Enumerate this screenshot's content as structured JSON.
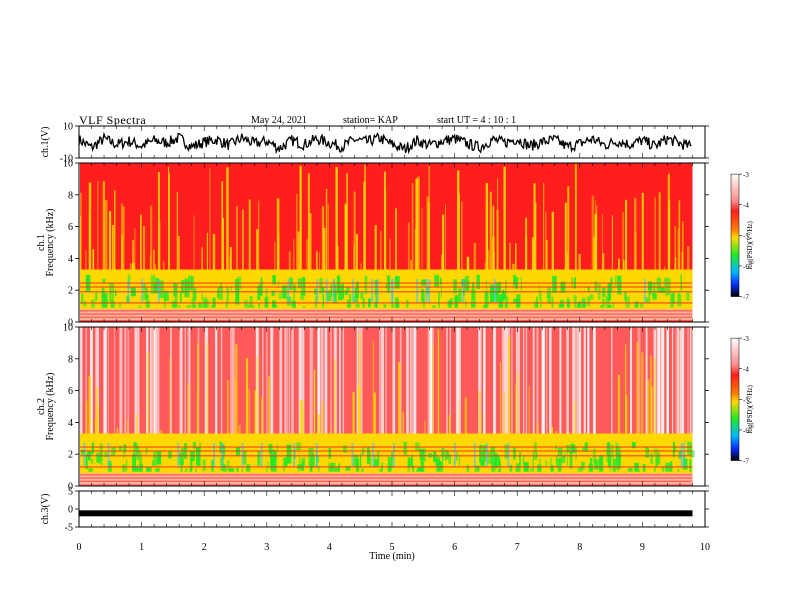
{
  "header": {
    "title": "VLF Spectra",
    "date": "May 24, 2021",
    "station": "station= KAP",
    "start": "start  UT =   4 : 10 : 1"
  },
  "chart_data": [
    {
      "id": "ch1-waveform",
      "type": "line",
      "ylabel": "ch.1(V)",
      "ylim": [
        -10,
        10
      ],
      "yticks": [
        "10",
        "-10"
      ],
      "xlim": [
        0,
        10
      ],
      "series": [
        {
          "color": "#000000",
          "x": [
            0.0,
            0.2,
            0.4,
            0.6,
            0.8,
            1.0,
            1.2,
            1.4,
            1.6,
            1.8,
            2.0,
            2.2,
            2.4,
            2.6,
            2.8,
            3.0,
            3.2,
            3.4,
            3.6,
            3.8,
            4.0,
            4.2,
            4.4,
            4.6,
            4.8,
            5.0,
            5.2,
            5.4,
            5.6,
            5.8,
            6.0,
            6.2,
            6.4,
            6.6,
            6.8,
            7.0,
            7.2,
            7.4,
            7.6,
            7.8,
            8.0,
            8.2,
            8.4,
            8.6,
            8.8,
            9.0,
            9.2,
            9.4,
            9.6,
            9.8
          ],
          "values": [
            1.5,
            -3.5,
            2.0,
            -1.5,
            0.5,
            -2.5,
            1.0,
            -0.5,
            2.5,
            -3.0,
            0.0,
            1.5,
            -2.0,
            2.5,
            -1.0,
            0.5,
            -4.0,
            1.0,
            -1.5,
            2.0,
            -0.5,
            -3.0,
            1.5,
            0.0,
            2.5,
            -1.5,
            -4.5,
            1.0,
            -2.0,
            0.5,
            2.0,
            -1.0,
            -3.5,
            1.5,
            -0.5,
            2.0,
            -2.5,
            0.0,
            1.5,
            -3.0,
            -1.0,
            2.0,
            -2.0,
            0.5,
            -1.5,
            1.0,
            -2.5,
            2.0,
            -1.0,
            -3.0
          ]
        }
      ]
    },
    {
      "id": "ch1-spectrogram",
      "type": "heatmap",
      "ylabel": "ch.1\nFrequency  (kHz)",
      "ylim": [
        0,
        10
      ],
      "yticks": [
        "0",
        "2",
        "4",
        "6",
        "8",
        "10"
      ],
      "xlim": [
        0,
        10
      ],
      "colorbar": {
        "label": "log(PSD)(V²/Hz)",
        "range": [
          -7,
          -3
        ],
        "ticks": [
          "-3",
          "-4",
          "-5",
          "-6",
          "-7"
        ]
      }
    },
    {
      "id": "ch2-spectrogram",
      "type": "heatmap",
      "ylabel": "ch.2\nFrequency  (kHz)",
      "ylim": [
        0,
        10
      ],
      "yticks": [
        "0",
        "2",
        "4",
        "6",
        "8",
        "10"
      ],
      "xlim": [
        0,
        10
      ],
      "colorbar": {
        "label": "log(PSD)(V²/Hz)",
        "range": [
          -7,
          -3
        ],
        "ticks": [
          "-3",
          "-4",
          "-5",
          "-6",
          "-7"
        ]
      }
    },
    {
      "id": "ch3-waveform",
      "type": "line",
      "ylabel": "ch.3(V)",
      "ylim": [
        -5,
        5
      ],
      "yticks": [
        "5",
        "0",
        "-5"
      ],
      "xlim": [
        0,
        10
      ],
      "series": [
        {
          "color": "#000000",
          "x": [
            0,
            9.8
          ],
          "values": [
            -1.2,
            -1.2
          ]
        }
      ]
    }
  ],
  "x_axis": {
    "label": "Time  (min)",
    "ticks": [
      "0",
      "1",
      "2",
      "3",
      "4",
      "5",
      "6",
      "7",
      "8",
      "9",
      "10"
    ]
  },
  "colors": {
    "white": "#ffffff",
    "red": "#ff1e1e",
    "yellow": "#ffd800",
    "green": "#22e82a",
    "blue": "#0a2cff",
    "black": "#000000"
  }
}
